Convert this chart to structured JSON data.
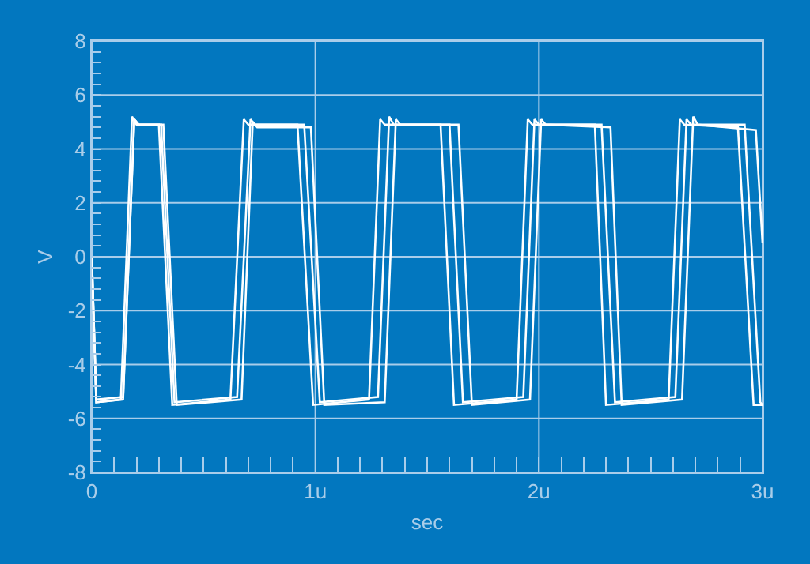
{
  "chart_data": {
    "type": "line",
    "xlabel": "sec",
    "ylabel": "V",
    "xlim": [
      0,
      3
    ],
    "ylim": [
      -8,
      8
    ],
    "xticks": [
      0,
      {
        "value": 1,
        "label": "1u"
      },
      {
        "value": 2,
        "label": "2u"
      },
      {
        "value": 3,
        "label": "3u"
      },
      {
        "value": 0.1,
        "label": null
      },
      {
        "value": 0.2,
        "label": null
      },
      {
        "value": 0.3,
        "label": null
      },
      {
        "value": 0.4,
        "label": null
      },
      {
        "value": 0.5,
        "label": null
      },
      {
        "value": 0.6,
        "label": null
      },
      {
        "value": 0.7,
        "label": null
      },
      {
        "value": 0.8,
        "label": null
      },
      {
        "value": 0.9,
        "label": null
      },
      {
        "value": 1.1,
        "label": null
      },
      {
        "value": 1.2,
        "label": null
      },
      {
        "value": 1.3,
        "label": null
      },
      {
        "value": 1.4,
        "label": null
      },
      {
        "value": 1.5,
        "label": null
      },
      {
        "value": 1.6,
        "label": null
      },
      {
        "value": 1.7,
        "label": null
      },
      {
        "value": 1.8,
        "label": null
      },
      {
        "value": 1.9,
        "label": null
      },
      {
        "value": 2.1,
        "label": null
      },
      {
        "value": 2.2,
        "label": null
      },
      {
        "value": 2.3,
        "label": null
      },
      {
        "value": 2.4,
        "label": null
      },
      {
        "value": 2.5,
        "label": null
      },
      {
        "value": 2.6,
        "label": null
      },
      {
        "value": 2.7,
        "label": null
      },
      {
        "value": 2.8,
        "label": null
      },
      {
        "value": 2.9,
        "label": null
      }
    ],
    "yticks": [
      -8,
      -6,
      -4,
      -2,
      0,
      2,
      4,
      6,
      8,
      {
        "value": -7.6,
        "label": null
      },
      {
        "value": -7.2,
        "label": null
      },
      {
        "value": -6.8,
        "label": null
      },
      {
        "value": -6.4,
        "label": null
      },
      {
        "value": -5.6,
        "label": null
      },
      {
        "value": -5.2,
        "label": null
      },
      {
        "value": -4.8,
        "label": null
      },
      {
        "value": -4.4,
        "label": null
      },
      {
        "value": -3.6,
        "label": null
      },
      {
        "value": -3.2,
        "label": null
      },
      {
        "value": -2.8,
        "label": null
      },
      {
        "value": -2.4,
        "label": null
      },
      {
        "value": -1.6,
        "label": null
      },
      {
        "value": -1.2,
        "label": null
      },
      {
        "value": -0.8,
        "label": null
      },
      {
        "value": -0.4,
        "label": null
      },
      {
        "value": 0.4,
        "label": null
      },
      {
        "value": 0.8,
        "label": null
      },
      {
        "value": 1.2,
        "label": null
      },
      {
        "value": 1.6,
        "label": null
      },
      {
        "value": 2.4,
        "label": null
      },
      {
        "value": 2.8,
        "label": null
      },
      {
        "value": 3.2,
        "label": null
      },
      {
        "value": 3.6,
        "label": null
      },
      {
        "value": 4.4,
        "label": null
      },
      {
        "value": 4.8,
        "label": null
      },
      {
        "value": 5.2,
        "label": null
      },
      {
        "value": 5.6,
        "label": null
      },
      {
        "value": 6.4,
        "label": null
      },
      {
        "value": 6.8,
        "label": null
      },
      {
        "value": 7.2,
        "label": null
      },
      {
        "value": 7.6,
        "label": null
      }
    ],
    "grid": true,
    "series": [
      {
        "color": "#ffffff",
        "x": [
          0,
          0.02,
          0.13,
          0.18,
          0.2,
          0.3,
          0.36,
          0.62,
          0.68,
          0.7,
          0.92,
          0.99,
          1.24,
          1.29,
          1.31,
          1.56,
          1.62,
          1.9,
          1.95,
          1.97,
          2.25,
          2.3,
          2.58,
          2.63,
          2.65,
          2.89,
          2.96,
          3
        ],
        "values": [
          0,
          -5.4,
          -5.3,
          5.2,
          4.9,
          4.9,
          -5.5,
          -5.3,
          5.1,
          4.9,
          4.9,
          -5.5,
          -5.3,
          5.1,
          4.9,
          4.9,
          -5.5,
          -5.3,
          5.1,
          4.9,
          4.9,
          -5.5,
          -5.3,
          5.1,
          4.9,
          4.8,
          -5.5,
          -5.5
        ]
      },
      {
        "color": "#ffffff",
        "x": [
          0,
          0.02,
          0.14,
          0.19,
          0.21,
          0.31,
          0.37,
          0.65,
          0.71,
          0.73,
          0.95,
          1.02,
          1.28,
          1.33,
          1.35,
          1.6,
          1.66,
          1.93,
          1.98,
          2,
          2.28,
          2.34,
          2.61,
          2.66,
          2.68,
          2.92,
          2.99,
          3
        ],
        "values": [
          0,
          -5.3,
          -5.2,
          5.1,
          4.9,
          4.9,
          -5.4,
          -5.2,
          5.1,
          4.9,
          4.9,
          -5.4,
          -5.2,
          5.2,
          4.9,
          4.9,
          -5.4,
          -5.2,
          5.1,
          4.9,
          4.9,
          -5.4,
          -5.2,
          5.1,
          4.9,
          4.9,
          -5.4,
          -5.5
        ]
      },
      {
        "color": "#ffffff",
        "x": [
          0,
          0.02,
          0.14,
          0.19,
          0.21,
          0.32,
          0.38,
          0.67,
          0.72,
          0.74,
          0.98,
          1.04,
          1.31,
          1.36,
          1.38,
          1.64,
          1.7,
          1.96,
          2.01,
          2.03,
          2.32,
          2.37,
          2.64,
          2.69,
          2.71,
          2.97,
          3
        ],
        "values": [
          0,
          -5.4,
          -5.3,
          5.1,
          4.9,
          4.9,
          -5.5,
          -5.3,
          5.0,
          4.8,
          4.8,
          -5.5,
          -5.4,
          5.1,
          4.9,
          4.9,
          -5.5,
          -5.3,
          5.1,
          4.9,
          4.8,
          -5.5,
          -5.3,
          5.2,
          4.9,
          4.7,
          0.5
        ]
      }
    ]
  }
}
